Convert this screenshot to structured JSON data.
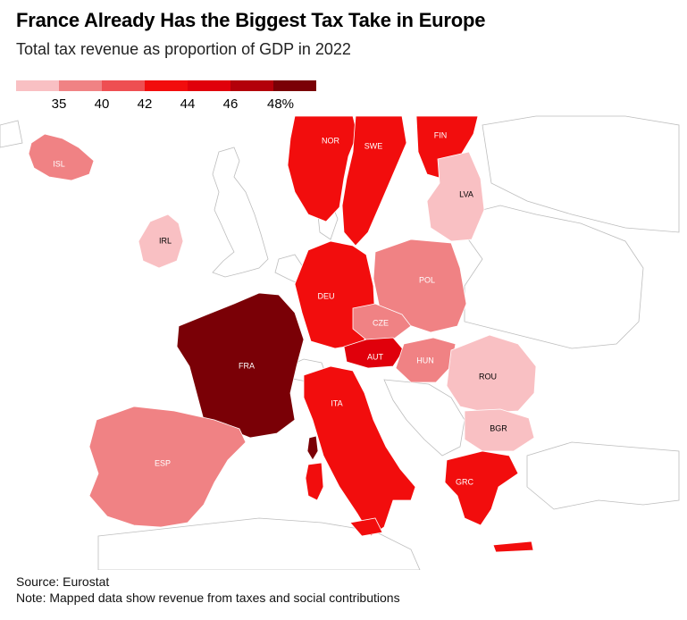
{
  "title": "France Already Has the Biggest Tax Take in Europe",
  "subtitle": "Total tax revenue as proportion of GDP in 2022",
  "legend": {
    "colors": [
      "#f9c0c3",
      "#f08284",
      "#ee4f52",
      "#f20d0d",
      "#e0000b",
      "#b3000a",
      "#7a0006"
    ],
    "ticks": [
      "35",
      "40",
      "42",
      "44",
      "46",
      "48%"
    ]
  },
  "countries": [
    {
      "code": "ISL",
      "label": "ISL",
      "fill": "#f08284",
      "text": "#ffffff"
    },
    {
      "code": "IRL",
      "label": "IRL",
      "fill": "#f9c0c3",
      "text": "#000000"
    },
    {
      "code": "NOR",
      "label": "NOR",
      "fill": "#f20d0d",
      "text": "#ffffff"
    },
    {
      "code": "SWE",
      "label": "SWE",
      "fill": "#f20d0d",
      "text": "#ffffff"
    },
    {
      "code": "FIN",
      "label": "FIN",
      "fill": "#f20d0d",
      "text": "#ffffff"
    },
    {
      "code": "LVA",
      "label": "LVA",
      "fill": "#f9c0c3",
      "text": "#000000"
    },
    {
      "code": "DEU",
      "label": "DEU",
      "fill": "#f20d0d",
      "text": "#ffffff"
    },
    {
      "code": "POL",
      "label": "POL",
      "fill": "#f08284",
      "text": "#ffffff"
    },
    {
      "code": "CZE",
      "label": "CZE",
      "fill": "#f08284",
      "text": "#ffffff"
    },
    {
      "code": "AUT",
      "label": "AUT",
      "fill": "#e0000b",
      "text": "#ffffff"
    },
    {
      "code": "HUN",
      "label": "HUN",
      "fill": "#f08284",
      "text": "#ffffff"
    },
    {
      "code": "FRA",
      "label": "FRA",
      "fill": "#7a0006",
      "text": "#ffffff"
    },
    {
      "code": "ITA",
      "label": "ITA",
      "fill": "#f20d0d",
      "text": "#ffffff"
    },
    {
      "code": "ESP",
      "label": "ESP",
      "fill": "#f08284",
      "text": "#ffffff"
    },
    {
      "code": "ROU",
      "label": "ROU",
      "fill": "#f9c0c3",
      "text": "#000000"
    },
    {
      "code": "BGR",
      "label": "BGR",
      "fill": "#f9c0c3",
      "text": "#000000"
    },
    {
      "code": "GRC",
      "label": "GRC",
      "fill": "#f20d0d",
      "text": "#ffffff"
    }
  ],
  "footer": {
    "source": "Source: Eurostat",
    "note": "Note: Mapped data show revenue from taxes and social contributions"
  }
}
